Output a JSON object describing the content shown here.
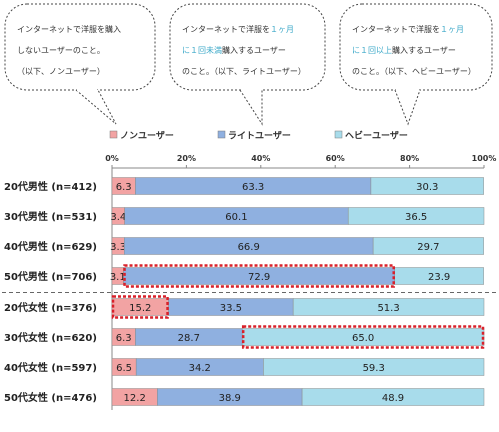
{
  "callouts": [
    {
      "lines": [
        [
          {
            "t": "インターネットで洋服を購入",
            "hl": false
          }
        ],
        [
          {
            "t": "しないユーザーのこと。",
            "hl": false
          }
        ],
        [
          {
            "t": "（以下、ノンユーザー）",
            "hl": false
          }
        ]
      ]
    },
    {
      "lines": [
        [
          {
            "t": "インターネットで洋服を",
            "hl": false
          },
          {
            "t": "１ヶ月",
            "hl": true
          }
        ],
        [
          {
            "t": "に１回未満",
            "hl": true
          },
          {
            "t": "購入するユーザー",
            "hl": false
          }
        ],
        [
          {
            "t": "のこと。（以下、ライトユーザー）",
            "hl": false
          }
        ]
      ]
    },
    {
      "lines": [
        [
          {
            "t": "インターネットで洋服を",
            "hl": false
          },
          {
            "t": "１ヶ月",
            "hl": true
          }
        ],
        [
          {
            "t": "に１回以上",
            "hl": true
          },
          {
            "t": "購入するユーザー",
            "hl": false
          }
        ],
        [
          {
            "t": "のこと。（以下、ヘビーユーザー）",
            "hl": false
          }
        ]
      ]
    }
  ],
  "chart_data": {
    "type": "bar",
    "orientation": "horizontal",
    "stacked": true,
    "xlim": [
      0,
      100
    ],
    "x_ticks": [
      "0%",
      "20%",
      "40%",
      "60%",
      "80%",
      "100%"
    ],
    "grid": false,
    "legend_position": "top",
    "categories": [
      "20代男性 (n=412)",
      "30代男性 (n=531)",
      "40代男性 (n=629)",
      "50代男性 (n=706)",
      "20代女性 (n=376)",
      "30代女性 (n=620)",
      "40代女性 (n=597)",
      "50代女性 (n=476)"
    ],
    "series": [
      {
        "name": "ノンユーザー",
        "color": "#f2a3a3",
        "values": [
          6.3,
          3.4,
          3.3,
          3.1,
          15.2,
          6.3,
          6.5,
          12.2
        ]
      },
      {
        "name": "ライトユーザー",
        "color": "#8fb0e0",
        "values": [
          63.3,
          60.1,
          66.9,
          72.9,
          33.5,
          28.7,
          34.2,
          38.9
        ]
      },
      {
        "name": "ヘビーユーザー",
        "color": "#a8dceb",
        "values": [
          30.3,
          36.5,
          29.7,
          23.9,
          51.3,
          65.0,
          59.3,
          48.9
        ]
      }
    ],
    "highlights": [
      {
        "category_index": 3,
        "series_index": 1
      },
      {
        "category_index": 4,
        "series_index": 0
      },
      {
        "category_index": 5,
        "series_index": 2
      }
    ],
    "group_divider_after_index": 3
  }
}
